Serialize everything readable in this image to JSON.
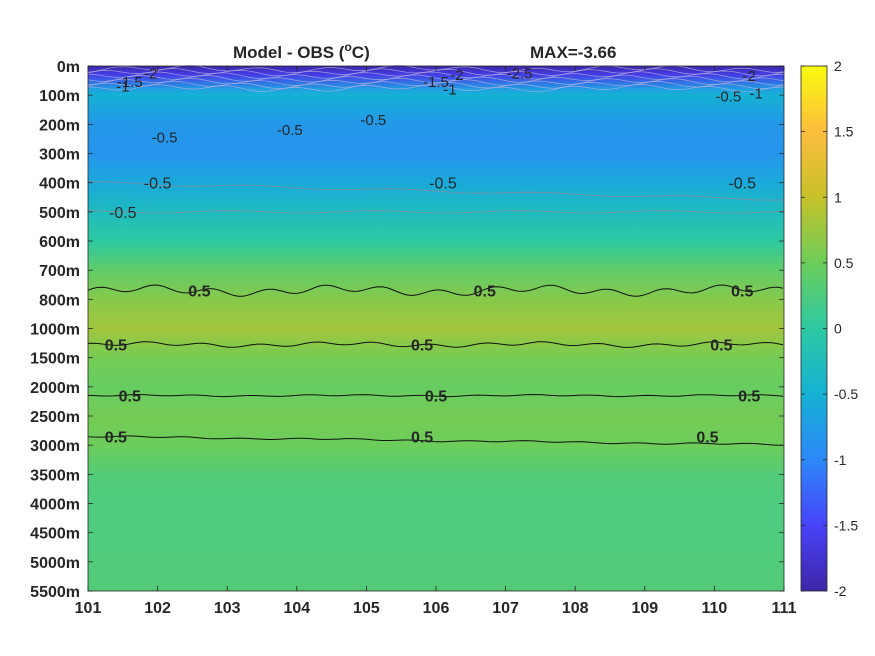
{
  "chart_data": {
    "type": "heatmap",
    "title_left": "Model - OBS (",
    "title_unit_sup": "o",
    "title_unit_end": "C)",
    "title_right": "MAX=-3.66",
    "x_ticks": [
      "101",
      "102",
      "103",
      "104",
      "105",
      "106",
      "107",
      "108",
      "109",
      "110",
      "111"
    ],
    "x_range": [
      101,
      111
    ],
    "y_ticks": [
      "0m",
      "100m",
      "200m",
      "300m",
      "400m",
      "500m",
      "600m",
      "700m",
      "800m",
      "1000m",
      "1500m",
      "2000m",
      "2500m",
      "3000m",
      "3500m",
      "4000m",
      "4500m",
      "5000m",
      "5500m"
    ],
    "colorbar": {
      "ticks": [
        "2",
        "1.5",
        "1",
        "0.5",
        "0",
        "-0.5",
        "-1",
        "-1.5",
        "-2"
      ],
      "range": [
        -2,
        2
      ],
      "colormap": [
        "#3e26a8",
        "#4743f8",
        "#2d88f8",
        "#15b1d3",
        "#2dc9a2",
        "#6ccd5a",
        "#c7c129",
        "#fcbd3d",
        "#f9fb0e"
      ]
    },
    "depth_profile": [
      {
        "level": 0,
        "value": -2.0
      },
      {
        "level": 0.3,
        "value": -1.6
      },
      {
        "level": 0.8,
        "value": -0.7
      },
      {
        "level": 1.0,
        "value": -0.5
      },
      {
        "level": 2.0,
        "value": -0.8
      },
      {
        "level": 3.0,
        "value": -0.85
      },
      {
        "level": 4.0,
        "value": -0.6
      },
      {
        "level": 5.0,
        "value": -0.3
      },
      {
        "level": 6.0,
        "value": 0.0
      },
      {
        "level": 7.0,
        "value": 0.4
      },
      {
        "level": 8.0,
        "value": 0.65
      },
      {
        "level": 9.0,
        "value": 0.8
      },
      {
        "level": 10.0,
        "value": 0.55
      },
      {
        "level": 11.0,
        "value": 0.45
      },
      {
        "level": 12.0,
        "value": 0.55
      },
      {
        "level": 13.0,
        "value": 0.5
      },
      {
        "level": 14.0,
        "value": 0.3
      },
      {
        "level": 15.0,
        "value": 0.25
      },
      {
        "level": 16.0,
        "value": 0.25
      },
      {
        "level": 17.0,
        "value": 0.28
      },
      {
        "level": 18.0,
        "value": 0.3
      }
    ],
    "contours_black": [
      {
        "label": "0.5",
        "level": 7.7,
        "label_x": [
          102.6,
          106.7,
          110.4
        ]
      },
      {
        "label": "0.5",
        "level": 9.55,
        "label_x": [
          101.4,
          105.8,
          110.1
        ]
      },
      {
        "label": "0.5",
        "level": 11.3,
        "label_x": [
          101.6,
          106.0,
          110.5
        ]
      },
      {
        "label": "0.5",
        "level": 12.7,
        "label_x": [
          101.4,
          105.8,
          109.9
        ]
      }
    ],
    "contours_gray": [
      {
        "label": "-0.5",
        "level": 4.0,
        "label_x": [
          102.0,
          106.1,
          110.4
        ]
      },
      {
        "label": "-0.5",
        "level": 5.0,
        "label_x": [
          101.5
        ]
      }
    ],
    "gray_labels": [
      {
        "text": "-0.5",
        "x": 102.1,
        "level": 2.45
      },
      {
        "text": "-0.5",
        "x": 103.9,
        "level": 2.2
      },
      {
        "text": "-0.5",
        "x": 105.1,
        "level": 1.85
      },
      {
        "text": "-1.5",
        "x": 101.6,
        "level": 0.55
      },
      {
        "text": "-1",
        "x": 101.5,
        "level": 0.7
      },
      {
        "text": "-2",
        "x": 101.9,
        "level": 0.25
      },
      {
        "text": "-1.5",
        "x": 106.0,
        "level": 0.55
      },
      {
        "text": "-2",
        "x": 106.3,
        "level": 0.3
      },
      {
        "text": "-1",
        "x": 106.2,
        "level": 0.8
      },
      {
        "text": "-2.5",
        "x": 107.2,
        "level": 0.25
      },
      {
        "text": "-2",
        "x": 110.5,
        "level": 0.35
      },
      {
        "text": "-0.5",
        "x": 110.2,
        "level": 1.05
      },
      {
        "text": "-1",
        "x": 110.6,
        "level": 0.95
      }
    ]
  }
}
